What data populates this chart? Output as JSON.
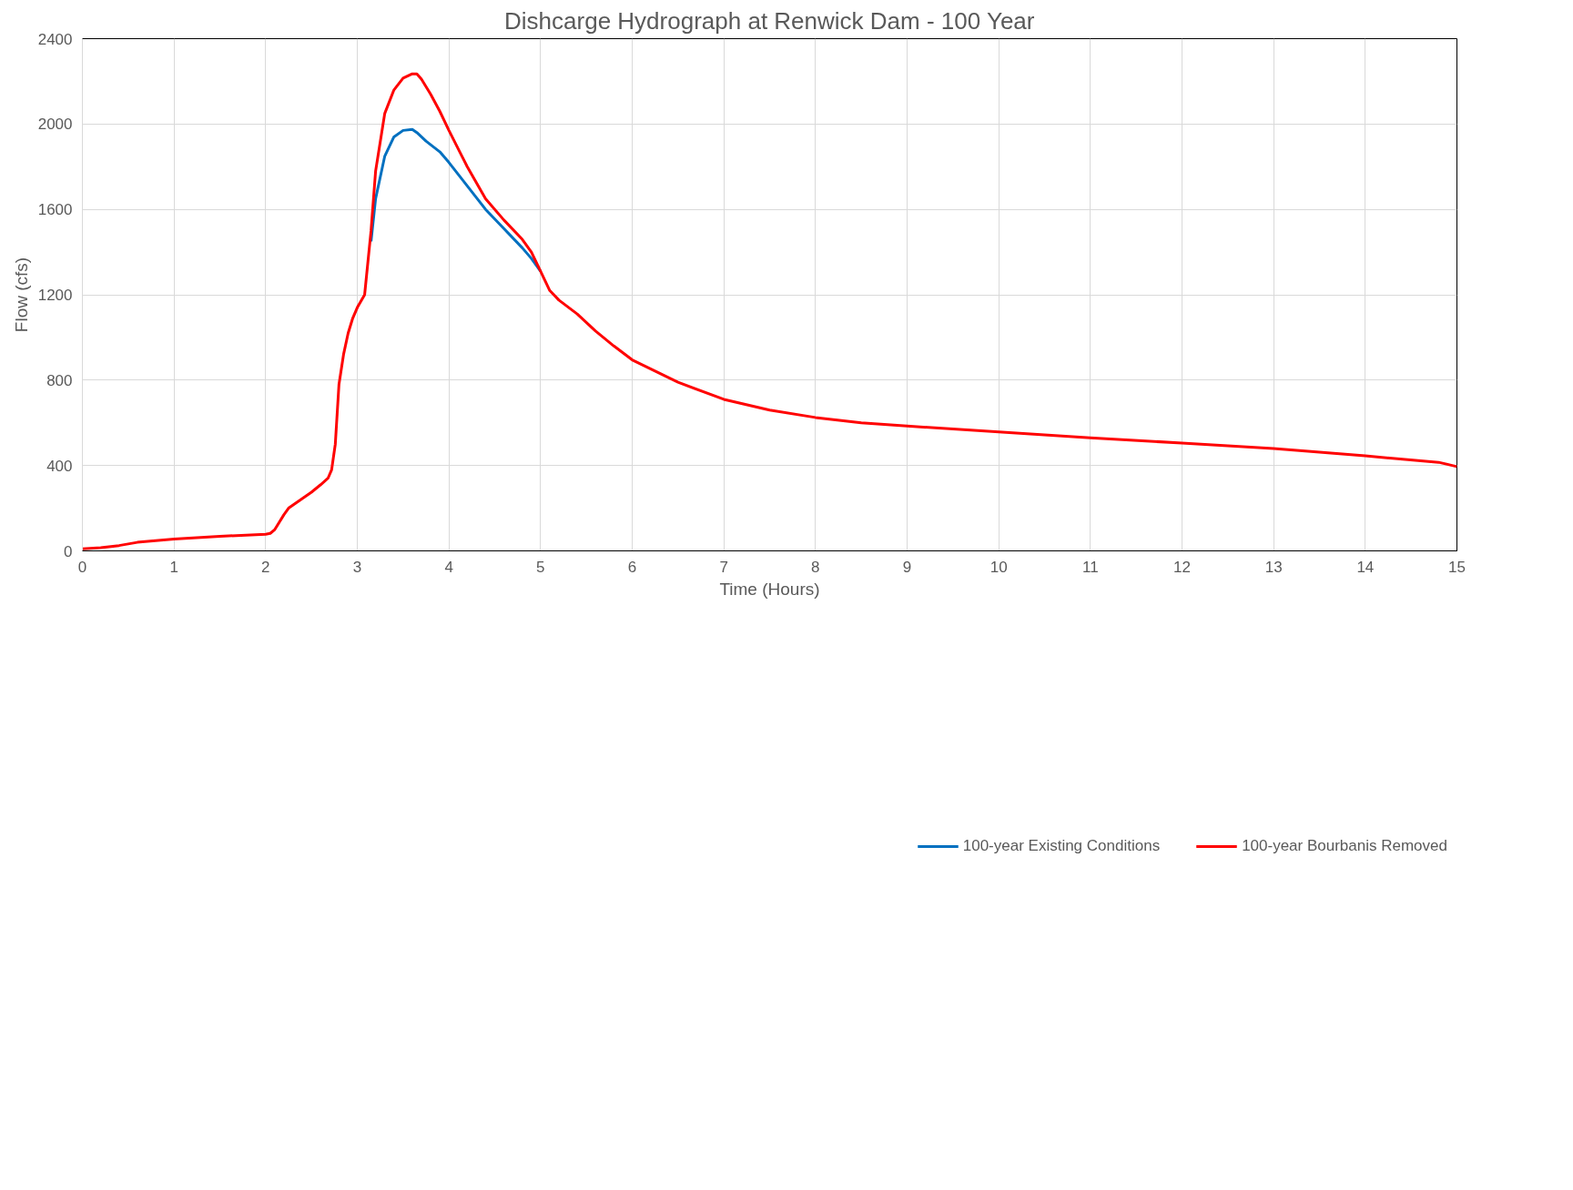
{
  "chart_data": {
    "type": "line",
    "title": "Dishcarge Hydrograph at Renwick Dam - 100 Year",
    "xlabel": "Time (Hours)",
    "ylabel": "Flow (cfs)",
    "xlim": [
      0,
      15
    ],
    "xticks": [
      0,
      1,
      2,
      3,
      4,
      5,
      6,
      7,
      8,
      9,
      10,
      11,
      12,
      13,
      14,
      15
    ],
    "ylim": [
      0,
      2400
    ],
    "yticks": [
      0,
      400,
      800,
      1200,
      1600,
      2000,
      2400
    ],
    "grid": true,
    "legend": "bottom",
    "series": [
      {
        "name": "100-year Existing Conditions",
        "color": "#0070c0",
        "x": [
          3.15,
          3.2,
          3.3,
          3.4,
          3.5,
          3.6,
          3.65,
          3.75,
          3.9,
          4.0,
          4.2,
          4.4,
          4.6,
          4.8,
          4.9,
          5.0
        ],
        "values": [
          1450,
          1650,
          1850,
          1940,
          1970,
          1975,
          1960,
          1920,
          1870,
          1820,
          1710,
          1600,
          1510,
          1420,
          1370,
          1310
        ]
      },
      {
        "name": "100-year Bourbanis Removed",
        "color": "#ff0000",
        "x": [
          0,
          0.2,
          0.4,
          0.6,
          0.8,
          1,
          1.5,
          2,
          2.05,
          2.1,
          2.2,
          2.25,
          2.4,
          2.5,
          2.6,
          2.68,
          2.72,
          2.76,
          2.8,
          2.85,
          2.9,
          2.95,
          3.0,
          3.08,
          3.15,
          3.2,
          3.3,
          3.4,
          3.5,
          3.6,
          3.65,
          3.7,
          3.8,
          3.9,
          4.0,
          4.2,
          4.4,
          4.6,
          4.8,
          4.9,
          5.0,
          5.1,
          5.2,
          5.4,
          5.6,
          5.8,
          6,
          6.5,
          7,
          7.5,
          8,
          8.5,
          9,
          10,
          11,
          12,
          13,
          14,
          14.8,
          15
        ],
        "values": [
          10,
          15,
          25,
          40,
          48,
          55,
          68,
          78,
          82,
          100,
          170,
          200,
          245,
          275,
          310,
          340,
          380,
          500,
          780,
          920,
          1020,
          1090,
          1140,
          1200,
          1500,
          1780,
          2050,
          2160,
          2215,
          2235,
          2235,
          2210,
          2140,
          2060,
          1970,
          1800,
          1650,
          1550,
          1460,
          1400,
          1310,
          1220,
          1175,
          1110,
          1030,
          960,
          895,
          790,
          710,
          660,
          625,
          600,
          585,
          557,
          530,
          505,
          480,
          445,
          415,
          395
        ]
      }
    ]
  }
}
